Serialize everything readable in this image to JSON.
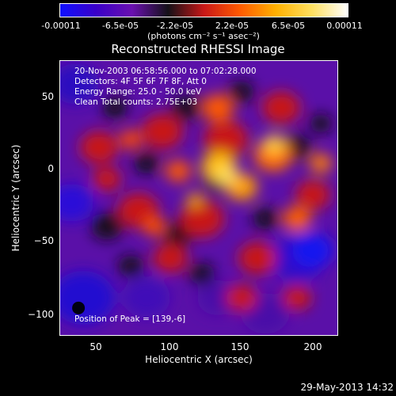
{
  "colorbar": {
    "ticks": [
      "-0.00011",
      "-6.5e-05",
      "-2.2e-05",
      "2.2e-05",
      "6.5e-05",
      "0.00011"
    ],
    "label": "(photons cm⁻² s⁻¹ asec⁻²)",
    "stops": [
      "#1010ff",
      "#3a00c8",
      "#6a10b0",
      "#141018",
      "#c81818",
      "#ff5a00",
      "#ffb000",
      "#ffe060",
      "#ffffff"
    ]
  },
  "chart_data": {
    "type": "heatmap",
    "title": "Reconstructed RHESSI Image",
    "xlabel": "Heliocentric X (arcsec)",
    "ylabel": "Heliocentric Y (arcsec)",
    "xlim": [
      25,
      215
    ],
    "ylim": [
      -115,
      73
    ],
    "xticks": [
      "50",
      "100",
      "150",
      "200"
    ],
    "yticks": [
      "50",
      "0",
      "−50",
      "−100"
    ],
    "annotations": [
      "20-Nov-2003 06:58:56.000 to 07:02:28.000",
      "Detectors: 4F 5F 6F 7F 8F, Att 0",
      "Energy Range: 25.0 - 50.0 keV",
      "Clean    Total counts: 2.75E+03"
    ],
    "peak_label": "Position of Peak = [139,-6]",
    "peak": [
      139,
      -6
    ],
    "zlim": [
      -0.00011,
      0.00011
    ]
  },
  "footer": {
    "date": "29-May-2013 14:32"
  }
}
